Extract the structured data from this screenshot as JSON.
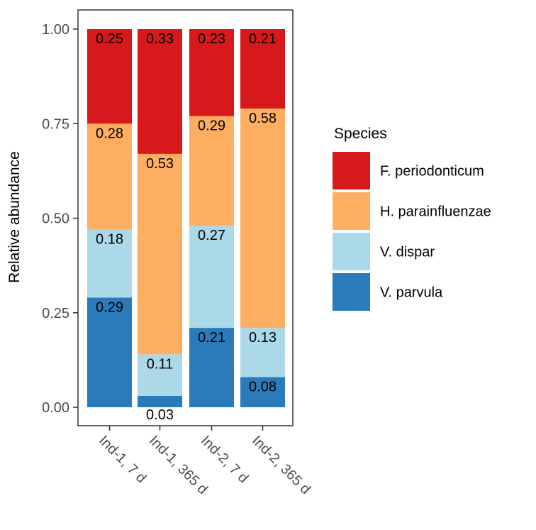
{
  "chart_data": {
    "type": "bar",
    "stacked": true,
    "title": "",
    "xlabel": "",
    "ylabel": "Relative abundance",
    "ylim": [
      0,
      1
    ],
    "yticks": [
      "0.00",
      "0.25",
      "0.50",
      "0.75",
      "1.00"
    ],
    "ytick_values": [
      0,
      0.25,
      0.5,
      0.75,
      1.0
    ],
    "categories": [
      "Ind-1, 7 d",
      "Ind-1, 365 d",
      "Ind-2, 7 d",
      "Ind-2, 365 d"
    ],
    "series": [
      {
        "name": "V. parvula",
        "color": "#2b7bba",
        "values": [
          0.29,
          0.03,
          0.21,
          0.08
        ],
        "labels": [
          "0.29",
          "0.03",
          "0.21",
          "0.08"
        ]
      },
      {
        "name": "V. dispar",
        "color": "#abd9e9",
        "values": [
          0.18,
          0.11,
          0.27,
          0.13
        ],
        "labels": [
          "0.18",
          "0.11",
          "0.27",
          "0.13"
        ]
      },
      {
        "name": "H. parainfluenzae",
        "color": "#fdae61",
        "values": [
          0.28,
          0.53,
          0.29,
          0.58
        ],
        "labels": [
          "0.28",
          "0.53",
          "0.29",
          "0.58"
        ]
      },
      {
        "name": "F. periodonticum",
        "color": "#d7191c",
        "values": [
          0.25,
          0.33,
          0.23,
          0.21
        ],
        "labels": [
          "0.25",
          "0.33",
          "0.23",
          "0.21"
        ]
      }
    ],
    "legend": {
      "title": "Species",
      "position": "right",
      "order": [
        "F. periodonticum",
        "H. parainfluenzae",
        "V. dispar",
        "V. parvula"
      ]
    }
  }
}
